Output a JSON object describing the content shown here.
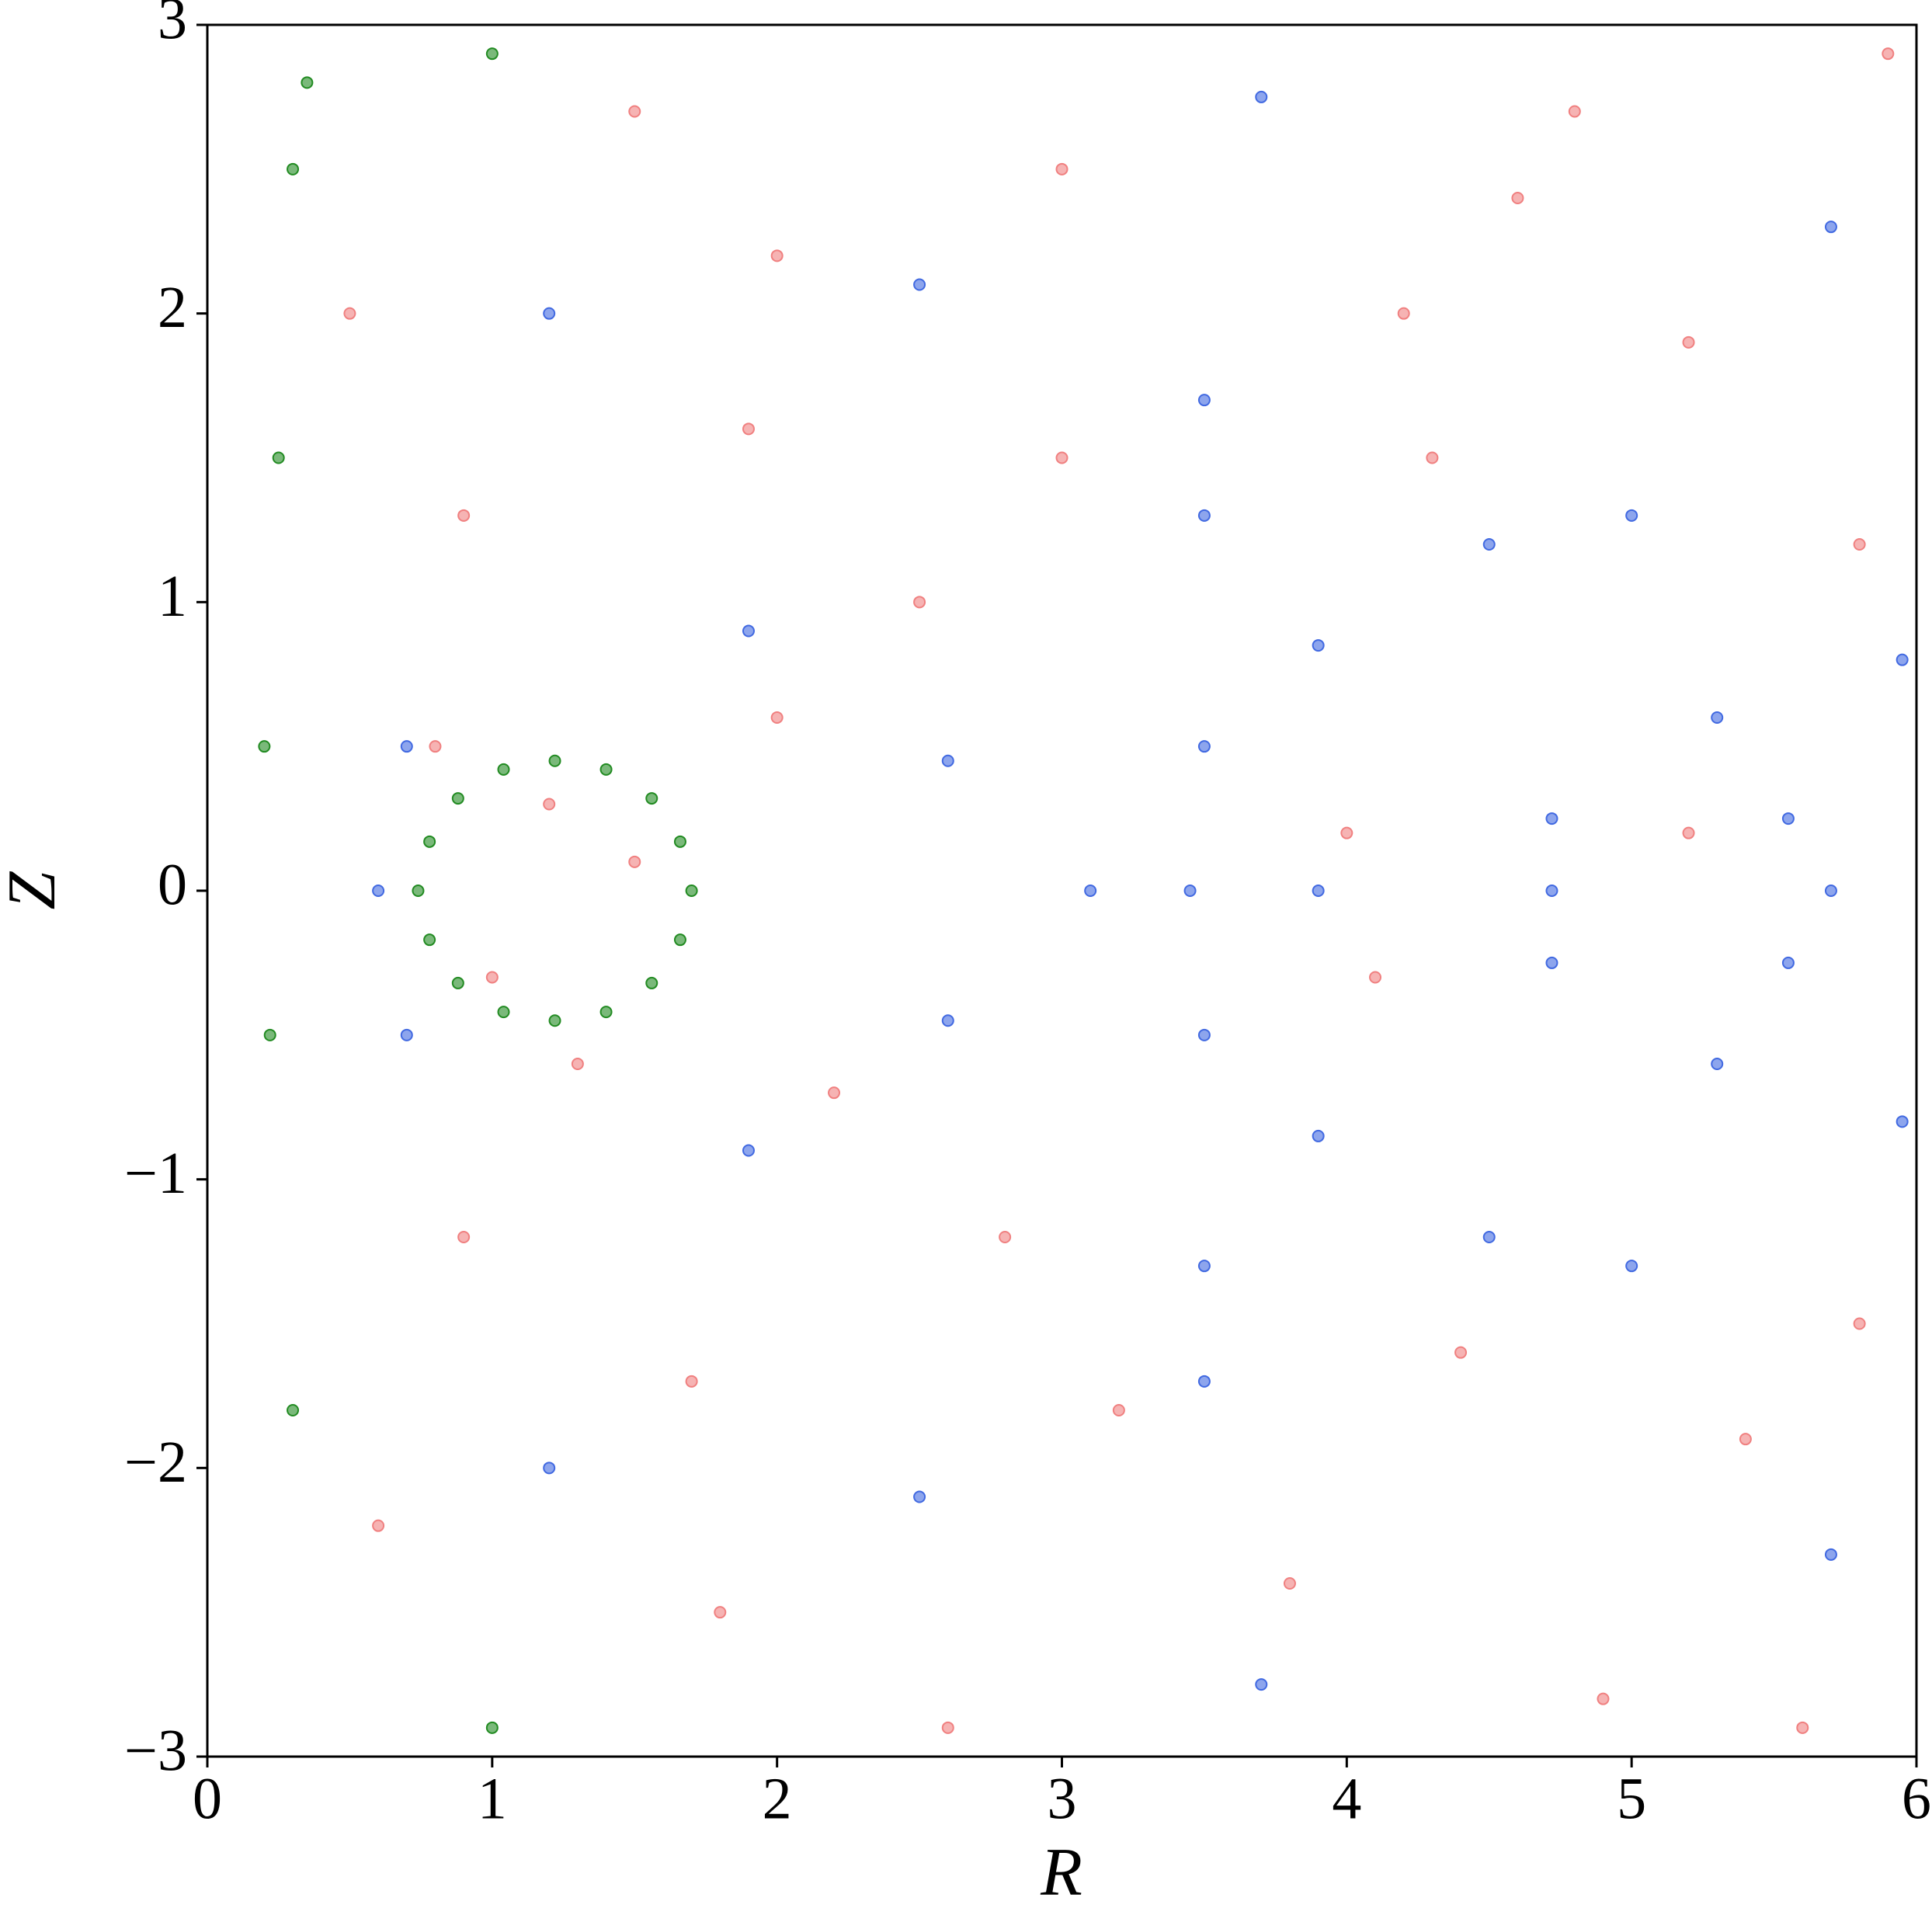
{
  "chart_data": {
    "type": "scatter",
    "xlabel": "R",
    "ylabel": "Z",
    "xlim": [
      0,
      6
    ],
    "ylim": [
      -3,
      3
    ],
    "xticks": [
      0,
      1,
      2,
      3,
      4,
      5,
      6
    ],
    "yticks": [
      {
        "value": -3,
        "label": "−3"
      },
      {
        "value": -2,
        "label": "−2"
      },
      {
        "value": -1,
        "label": "−1"
      },
      0,
      1,
      2,
      3
    ],
    "grid": false,
    "series": [
      {
        "color": "#f08080",
        "x": [
          1.2,
          1.0,
          1.5,
          0.8,
          1.3,
          2.0,
          2.2,
          2.5,
          2.8,
          3.0,
          3.2,
          2.0,
          1.5,
          1.8,
          3.0,
          4.0,
          4.1,
          4.3,
          4.4,
          4.8,
          5.2,
          5.4,
          5.8,
          5.8,
          5.2,
          4.6,
          4.9,
          0.9,
          0.9,
          0.5,
          0.6,
          3.8,
          2.6,
          5.9,
          5.6,
          4.2,
          1.9,
          1.7
        ],
        "values": [
          0.3,
          -0.3,
          0.1,
          0.5,
          -0.6,
          0.6,
          -0.7,
          1.0,
          -1.2,
          1.5,
          -1.8,
          2.2,
          2.7,
          -2.5,
          2.5,
          0.2,
          -0.3,
          1.5,
          -1.6,
          2.7,
          1.9,
          -1.9,
          1.2,
          -1.5,
          0.2,
          2.4,
          -2.8,
          1.3,
          -1.2,
          2.0,
          -2.2,
          -2.4,
          -2.9,
          2.9,
          -2.9,
          2.0,
          1.6,
          -1.7
        ]
      },
      {
        "color": "#4169e1",
        "x": [
          3.45,
          3.5,
          3.5,
          3.1,
          3.9,
          4.72,
          4.72,
          4.72,
          5.0,
          5.3,
          4.5,
          5.0,
          5.3,
          4.5,
          3.5,
          3.9,
          3.5,
          3.9,
          2.6,
          2.6,
          1.9,
          1.9,
          0.6,
          0.7,
          0.7,
          5.7,
          5.55,
          5.55,
          5.95,
          5.95,
          3.5,
          3.5,
          5.7,
          5.7,
          3.7,
          3.7,
          2.5,
          2.5,
          1.2,
          1.2
        ],
        "values": [
          0,
          0.5,
          -0.5,
          0,
          0,
          0,
          0.25,
          -0.25,
          1.3,
          0.6,
          1.2,
          -1.3,
          -0.6,
          -1.2,
          1.3,
          0.85,
          -1.3,
          -0.85,
          0.45,
          -0.45,
          0.9,
          -0.9,
          0,
          0.5,
          -0.5,
          0,
          0.25,
          -0.25,
          0.8,
          -0.8,
          1.7,
          -1.7,
          2.3,
          -2.3,
          2.75,
          -2.75,
          2.1,
          -2.1,
          2.0,
          -2.0
        ]
      },
      {
        "color": "#228b22",
        "x": [
          1.7,
          1.66,
          1.56,
          1.4,
          1.22,
          1.04,
          0.88,
          0.78,
          0.74,
          0.78,
          0.88,
          1.04,
          1.22,
          1.4,
          1.56,
          1.66,
          0.3,
          0.25,
          0.2,
          0.22,
          0.3,
          0.35,
          1.0,
          1.0
        ],
        "values": [
          0,
          0.17,
          0.32,
          0.42,
          0.45,
          0.42,
          0.32,
          0.17,
          0,
          -0.17,
          -0.32,
          -0.42,
          -0.45,
          -0.42,
          -0.32,
          -0.17,
          2.5,
          1.5,
          0.5,
          -0.5,
          -1.8,
          2.8,
          2.9,
          -2.9
        ]
      }
    ]
  }
}
